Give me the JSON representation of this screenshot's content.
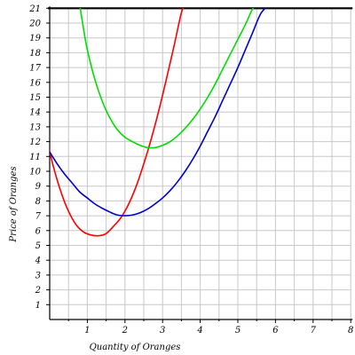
{
  "chart_data": {
    "type": "line",
    "title": "",
    "xlabel": "Quantity of Oranges",
    "ylabel": "Price of Oranges",
    "xlim": [
      0,
      8
    ],
    "ylim": [
      0,
      21
    ],
    "x_ticks": [
      1,
      2,
      3,
      4,
      5,
      6,
      7,
      8
    ],
    "y_ticks": [
      1,
      2,
      3,
      4,
      5,
      6,
      7,
      8,
      9,
      10,
      11,
      12,
      13,
      14,
      15,
      16,
      17,
      18,
      19,
      20,
      21
    ],
    "grid": true,
    "legend": "none",
    "series": [
      {
        "color": "#ff0000",
        "x": [
          -0.05,
          0.1,
          0.3,
          0.5,
          0.7,
          0.9,
          1.1,
          1.3,
          1.5,
          1.7,
          1.9,
          2.1,
          2.3,
          2.5,
          2.7,
          2.9,
          3.1,
          3.3,
          3.5,
          3.6
        ],
        "y": [
          11.9,
          10.3,
          8.6,
          7.3,
          6.4,
          5.9,
          5.7,
          5.65,
          5.8,
          6.3,
          6.9,
          7.8,
          9.0,
          10.5,
          12.2,
          14.1,
          16.2,
          18.4,
          20.7,
          21.2
        ]
      },
      {
        "color": "#00dd00",
        "x": [
          0.8,
          0.9,
          1.0,
          1.2,
          1.4,
          1.6,
          1.8,
          2.0,
          2.2,
          2.4,
          2.6,
          2.8,
          3.0,
          3.2,
          3.4,
          3.6,
          3.8,
          4.0,
          4.2,
          4.4,
          4.6,
          4.8,
          5.0,
          5.2,
          5.4,
          5.5
        ],
        "y": [
          21.2,
          19.6,
          18.2,
          16.2,
          14.7,
          13.6,
          12.8,
          12.3,
          12.0,
          11.75,
          11.6,
          11.6,
          11.75,
          12.0,
          12.4,
          12.9,
          13.5,
          14.2,
          15.0,
          15.9,
          16.9,
          17.9,
          18.9,
          19.9,
          21.0,
          21.2
        ]
      },
      {
        "color": "#0000cc",
        "x": [
          -0.05,
          0.2,
          0.4,
          0.6,
          0.8,
          1.0,
          1.2,
          1.4,
          1.6,
          1.8,
          2.0,
          2.2,
          2.4,
          2.6,
          2.8,
          3.0,
          3.2,
          3.4,
          3.6,
          3.8,
          4.0,
          4.2,
          4.4,
          4.6,
          4.8,
          5.0,
          5.2,
          5.4,
          5.6,
          5.8
        ],
        "y": [
          11.5,
          10.5,
          9.8,
          9.2,
          8.6,
          8.2,
          7.8,
          7.5,
          7.25,
          7.05,
          7.0,
          7.05,
          7.2,
          7.45,
          7.8,
          8.2,
          8.7,
          9.3,
          10.0,
          10.8,
          11.7,
          12.7,
          13.7,
          14.8,
          15.9,
          17.0,
          18.2,
          19.4,
          20.6,
          21.2
        ]
      }
    ]
  }
}
